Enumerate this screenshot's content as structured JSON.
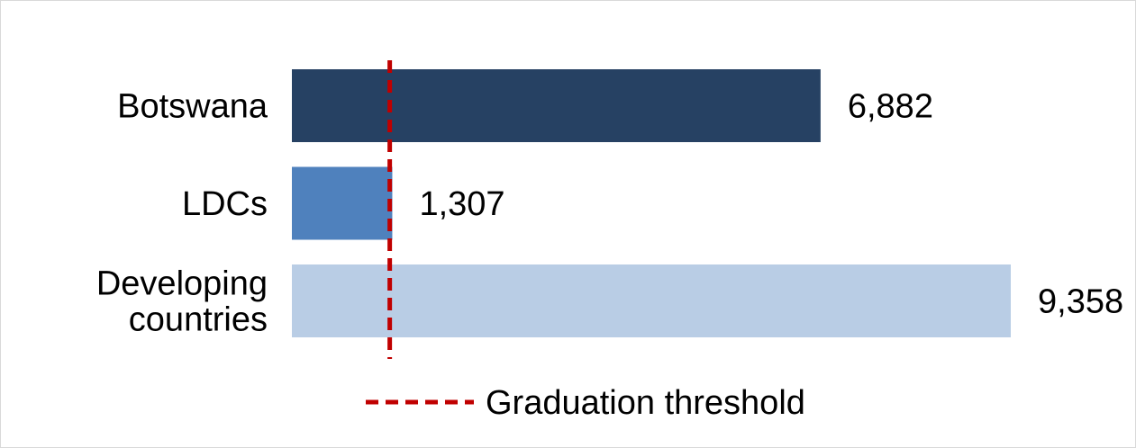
{
  "chart_data": {
    "type": "bar",
    "orientation": "horizontal",
    "title": "",
    "xlabel": "",
    "ylabel": "",
    "categories": [
      [
        "Botswana"
      ],
      [
        "LDCs"
      ],
      [
        "Developing",
        "countries"
      ]
    ],
    "values": [
      6882,
      1307,
      9358
    ],
    "value_labels": [
      "6,882",
      "1,307",
      "9,358"
    ],
    "bar_colors": [
      "#264163",
      "#4f81bd",
      "#b9cde5"
    ],
    "xlim": [
      0,
      9358
    ],
    "grid": false,
    "threshold": {
      "value": 1274,
      "label": "Graduation threshold",
      "color": "#c00000",
      "style": "dashed"
    },
    "legend": {
      "placement": "bottom-center",
      "entries": [
        "Graduation threshold"
      ]
    }
  }
}
